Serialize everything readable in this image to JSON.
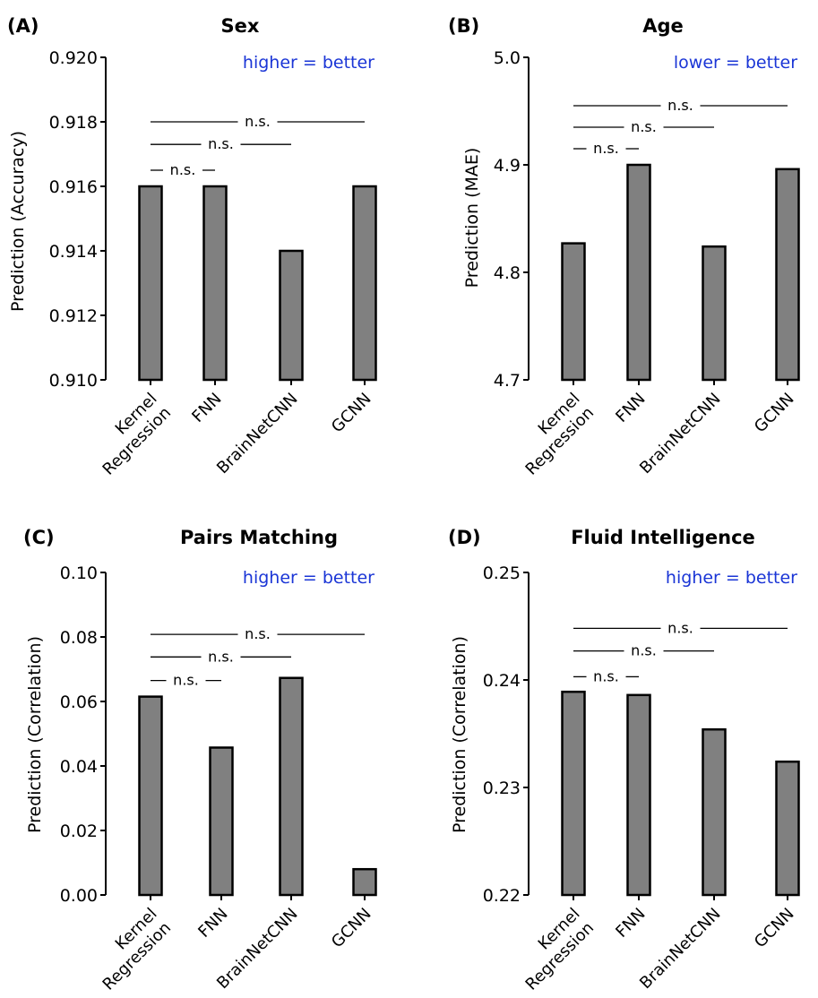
{
  "figure": {
    "panels": [
      {
        "letter": "(A)",
        "title": "Sex",
        "note": "higher = better",
        "ylabel": "Prediction (Accuracy)"
      },
      {
        "letter": "(B)",
        "title": "Age",
        "note": "lower = better",
        "ylabel": "Prediction (MAE)"
      },
      {
        "letter": "(C)",
        "title": "Pairs Matching",
        "note": "higher = better",
        "ylabel": "Prediction (Correlation)"
      },
      {
        "letter": "(D)",
        "title": "Fluid Intelligence",
        "note": "higher = better",
        "ylabel": "Prediction (Correlation)"
      }
    ],
    "note_color": "#1a35d6",
    "bar_color": "#808080",
    "bar_edge_color": "#000000"
  },
  "chart_data": [
    {
      "type": "bar",
      "panel": "(A)",
      "title": "Sex",
      "ylabel": "Prediction (Accuracy)",
      "categories": [
        "Kernel Regression",
        "FNN",
        "BrainNetCNN",
        "GCNN"
      ],
      "category_lines": [
        [
          "Kernel",
          "Regression"
        ],
        [
          "FNN"
        ],
        [
          "BrainNetCNN"
        ],
        [
          "GCNN"
        ]
      ],
      "values": [
        0.916,
        0.916,
        0.914,
        0.916
      ],
      "ylim": [
        0.91,
        0.92
      ],
      "yticks": [
        0.91,
        0.912,
        0.914,
        0.916,
        0.918,
        0.92
      ],
      "ytick_labels": [
        "0.910",
        "0.912",
        "0.914",
        "0.916",
        "0.918",
        "0.920"
      ],
      "annotation": "higher = better",
      "significance": [
        {
          "from": 0,
          "to": 1,
          "label": "n.s.",
          "y": 0.9165
        },
        {
          "from": 0,
          "to": 2,
          "label": "n.s.",
          "y": 0.9173
        },
        {
          "from": 0,
          "to": 3,
          "label": "n.s.",
          "y": 0.918
        }
      ]
    },
    {
      "type": "bar",
      "panel": "(B)",
      "title": "Age",
      "ylabel": "Prediction (MAE)",
      "categories": [
        "Kernel Regression",
        "FNN",
        "BrainNetCNN",
        "GCNN"
      ],
      "category_lines": [
        [
          "Kernel",
          "Regression"
        ],
        [
          "FNN"
        ],
        [
          "BrainNetCNN"
        ],
        [
          "GCNN"
        ]
      ],
      "values": [
        4.827,
        4.9,
        4.824,
        4.896
      ],
      "ylim": [
        4.7,
        5.0
      ],
      "yticks": [
        4.7,
        4.8,
        4.9,
        5.0
      ],
      "ytick_labels": [
        "4.7",
        "4.8",
        "4.9",
        "5.0"
      ],
      "annotation": "lower = better",
      "significance": [
        {
          "from": 0,
          "to": 1,
          "label": "n.s.",
          "y": 4.915
        },
        {
          "from": 0,
          "to": 2,
          "label": "n.s.",
          "y": 4.935
        },
        {
          "from": 0,
          "to": 3,
          "label": "n.s.",
          "y": 4.955
        }
      ]
    },
    {
      "type": "bar",
      "panel": "(C)",
      "title": "Pairs Matching",
      "ylabel": "Prediction (Correlation)",
      "categories": [
        "Kernel Regression",
        "FNN",
        "BrainNetCNN",
        "GCNN"
      ],
      "category_lines": [
        [
          "Kernel",
          "Regression"
        ],
        [
          "FNN"
        ],
        [
          "BrainNetCNN"
        ],
        [
          "GCNN"
        ]
      ],
      "values": [
        0.0615,
        0.0457,
        0.0673,
        0.008
      ],
      "ylim": [
        0.0,
        0.1
      ],
      "yticks": [
        0.0,
        0.02,
        0.04,
        0.06,
        0.08,
        0.1
      ],
      "ytick_labels": [
        "0.00",
        "0.02",
        "0.04",
        "0.06",
        "0.08",
        "0.10"
      ],
      "annotation": "higher = better",
      "significance": [
        {
          "from": 0,
          "to": 1,
          "label": "n.s.",
          "y": 0.0665
        },
        {
          "from": 0,
          "to": 2,
          "label": "n.s.",
          "y": 0.0738
        },
        {
          "from": 0,
          "to": 3,
          "label": "n.s.",
          "y": 0.0808
        }
      ]
    },
    {
      "type": "bar",
      "panel": "(D)",
      "title": "Fluid Intelligence",
      "ylabel": "Prediction (Correlation)",
      "categories": [
        "Kernel Regression",
        "FNN",
        "BrainNetCNN",
        "GCNN"
      ],
      "category_lines": [
        [
          "Kernel",
          "Regression"
        ],
        [
          "FNN"
        ],
        [
          "BrainNetCNN"
        ],
        [
          "GCNN"
        ]
      ],
      "values": [
        0.2389,
        0.2386,
        0.2354,
        0.2324
      ],
      "ylim": [
        0.22,
        0.25
      ],
      "yticks": [
        0.22,
        0.23,
        0.24,
        0.25
      ],
      "ytick_labels": [
        "0.22",
        "0.23",
        "0.24",
        "0.25"
      ],
      "annotation": "higher = better",
      "significance": [
        {
          "from": 0,
          "to": 1,
          "label": "n.s.",
          "y": 0.2403
        },
        {
          "from": 0,
          "to": 2,
          "label": "n.s.",
          "y": 0.2427
        },
        {
          "from": 0,
          "to": 3,
          "label": "n.s.",
          "y": 0.2448
        }
      ]
    }
  ]
}
